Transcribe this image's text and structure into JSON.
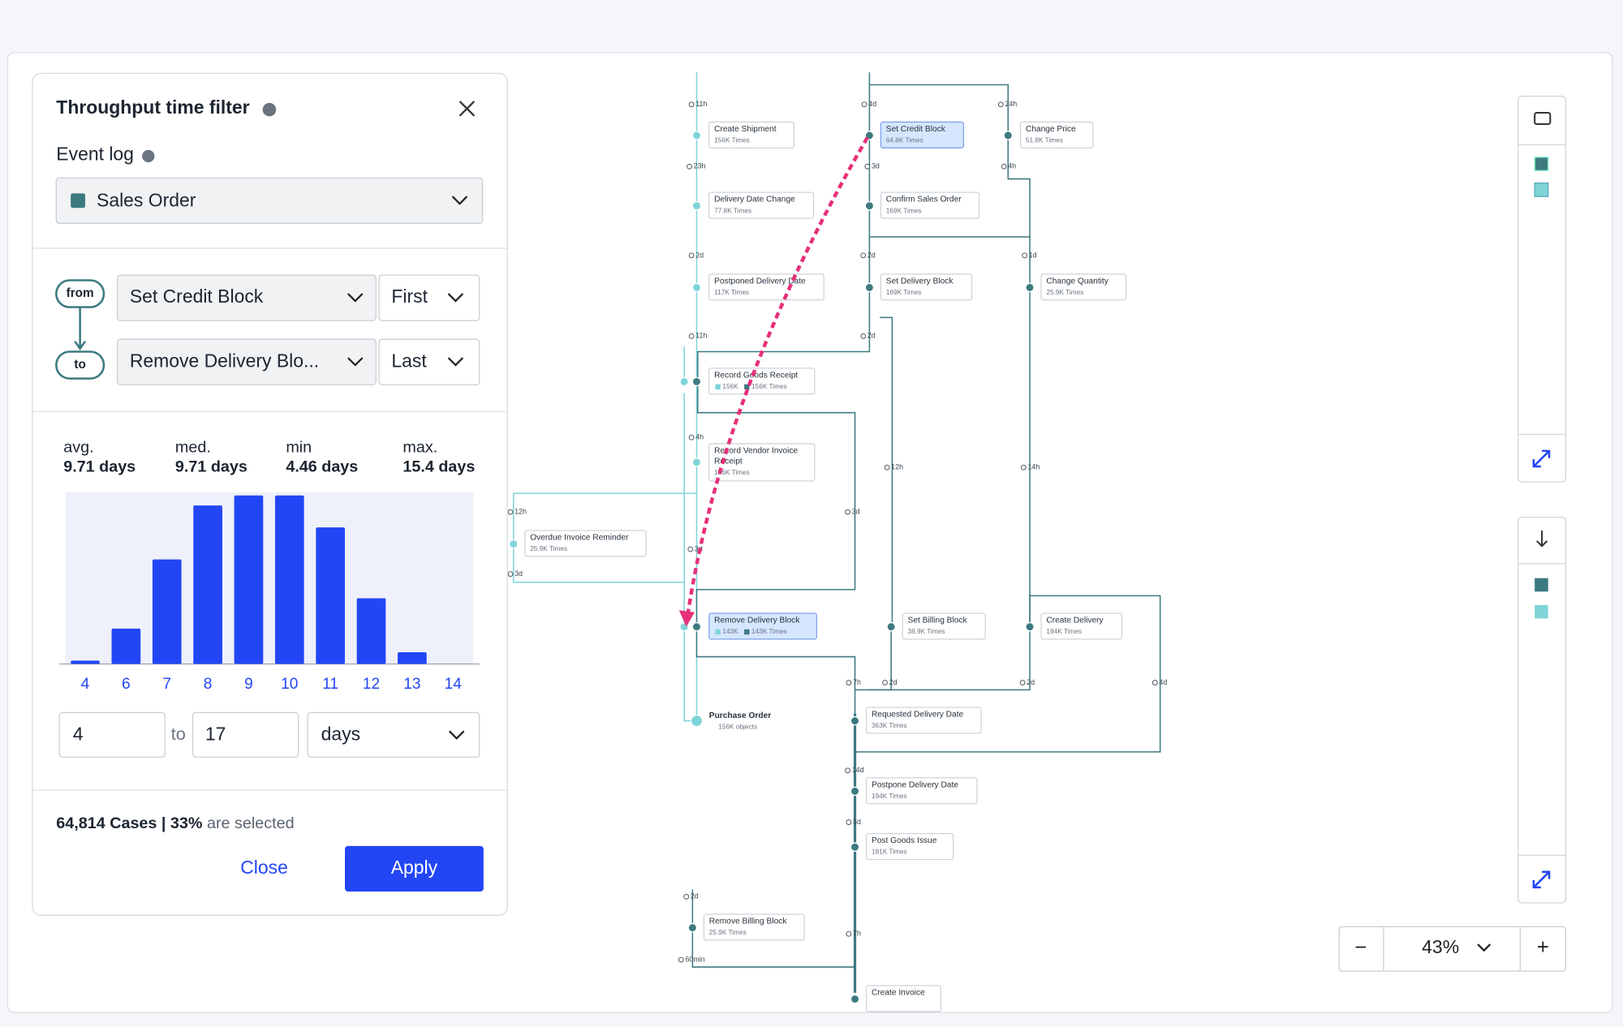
{
  "filter": {
    "title": "Throughput time filter",
    "event_log_label": "Event log",
    "event_log": "Sales Order",
    "from_label": "from",
    "to_label": "to",
    "from_activity": "Set Credit Block",
    "from_occurrence": "First",
    "to_activity": "Remove Delivery Blo...",
    "to_occurrence": "Last",
    "stats": [
      {
        "label": "avg.",
        "value": "9.71 days"
      },
      {
        "label": "med.",
        "value": "9.71 days"
      },
      {
        "label": "min",
        "value": "4.46 days"
      },
      {
        "label": "max.",
        "value": "15.4 days"
      }
    ],
    "range_from": "4",
    "range_sep": "to",
    "range_to": "17",
    "unit": "days",
    "cases": "64,814 Cases",
    "sep": "|",
    "share": "33%",
    "share_text": "are selected",
    "close": "Close",
    "apply": "Apply"
  },
  "chart_data": {
    "type": "bar",
    "categories": [
      "4",
      "6",
      "7",
      "8",
      "9",
      "10",
      "11",
      "12",
      "13",
      "14"
    ],
    "values": [
      2,
      21,
      62,
      94,
      100,
      100,
      81,
      39,
      7,
      0
    ],
    "color": "#2346f5",
    "ylim": [
      0,
      100
    ]
  },
  "graph": {
    "nodes": [
      {
        "label": "Create Shipment",
        "sub": "156K Times"
      },
      {
        "label": "Set Credit Block",
        "sub": "64.8K Times"
      },
      {
        "label": "Change Price",
        "sub": "51.8K Times"
      },
      {
        "label": "Delivery Date Change",
        "sub": "77.8K Times"
      },
      {
        "label": "Confirm Sales Order",
        "sub": "169K Times"
      },
      {
        "label": "Postponed Delivery Date",
        "sub": "117K Times"
      },
      {
        "label": "Set Delivery Block",
        "sub": "169K Times"
      },
      {
        "label": "Change Quantity",
        "sub": "25.9K Times"
      },
      {
        "label": "Record Goods Receipt",
        "sub": "156K",
        "sub2": "156K Times"
      },
      {
        "label": "Record Vendor Invoice",
        "label2": "Receipt",
        "sub": "156K Times"
      },
      {
        "label": "Overdue Invoice Reminder",
        "sub": "25.9K Times"
      },
      {
        "label": "Remove Delivery Block",
        "sub": "143K",
        "sub2": "143K Times"
      },
      {
        "label": "Set Billing Block",
        "sub": "38.9K Times"
      },
      {
        "label": "Create Delivery",
        "sub": "194K Times"
      },
      {
        "label": "Purchase Order",
        "sub": "156K objects"
      },
      {
        "label": "Requested Delivery Date",
        "sub": "363K Times"
      },
      {
        "label": "Postpone Delivery Date",
        "sub": "194K Times"
      },
      {
        "label": "Post Goods Issue",
        "sub": "181K Times"
      },
      {
        "label": "Remove Billing Block",
        "sub": "25.9K Times"
      },
      {
        "label": "Create Invoice"
      }
    ],
    "edge_labels": [
      "11h",
      "4d",
      "24h",
      "23h",
      "3d",
      "4h",
      "2d",
      "2d",
      "1d",
      "11h",
      "2d",
      "4h",
      "12h",
      "14h",
      "12h",
      "3d",
      "3d",
      "3d",
      "7h",
      "2d",
      "2d",
      "4d",
      "14d",
      "3d",
      "2d",
      "7h",
      "60min"
    ]
  },
  "zoom": {
    "minus": "−",
    "value": "43%",
    "plus": "+"
  }
}
